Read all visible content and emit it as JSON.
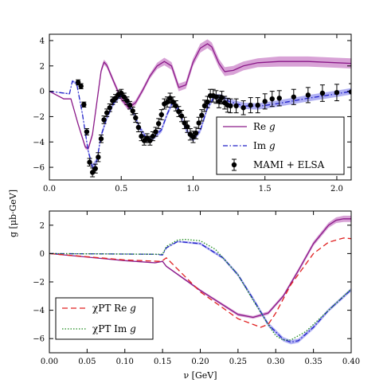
{
  "shared_ylabel": "g [μb·GeV]",
  "chart_data": [
    {
      "type": "line",
      "xlim": [
        0.0,
        2.1
      ],
      "ylim": [
        -7,
        4.5
      ],
      "xticks": [
        0.0,
        0.5,
        1.0,
        1.5,
        2.0
      ],
      "xtick_labels": [
        "0.0",
        "0.5",
        "1.0",
        "1.5",
        "2.0"
      ],
      "yticks": [
        4,
        2,
        0,
        -2,
        -4,
        -6
      ],
      "ytick_labels": [
        "4",
        "2",
        "0",
        "−2",
        "−4",
        "−6"
      ],
      "legend_position": "lower-right",
      "grid": false,
      "series": [
        {
          "name": "Re g",
          "label_main": "Re",
          "label_var": "g",
          "style": "solid",
          "color": "#8B1A89",
          "band_color": "#C77BC4",
          "x": [
            0.0,
            0.1,
            0.15,
            0.2,
            0.25,
            0.27,
            0.3,
            0.33,
            0.36,
            0.38,
            0.4,
            0.45,
            0.5,
            0.55,
            0.6,
            0.65,
            0.7,
            0.75,
            0.8,
            0.85,
            0.9,
            0.95,
            1.0,
            1.05,
            1.1,
            1.13,
            1.18,
            1.22,
            1.28,
            1.35,
            1.45,
            1.6,
            1.8,
            2.0,
            2.1
          ],
          "y": [
            0.0,
            -0.6,
            -0.6,
            -2.6,
            -4.4,
            -4.55,
            -3.4,
            -0.9,
            1.6,
            2.3,
            2.05,
            0.7,
            -0.6,
            -1.3,
            -0.9,
            0.1,
            1.2,
            2.0,
            2.35,
            2.0,
            0.3,
            0.5,
            2.3,
            3.4,
            3.75,
            3.5,
            2.2,
            1.55,
            1.65,
            2.0,
            2.25,
            2.35,
            2.35,
            2.25,
            2.2
          ],
          "band": [
            0.0,
            0.05,
            0.05,
            0.1,
            0.15,
            0.15,
            0.2,
            0.2,
            0.2,
            0.2,
            0.2,
            0.2,
            0.2,
            0.2,
            0.2,
            0.2,
            0.2,
            0.25,
            0.3,
            0.3,
            0.3,
            0.3,
            0.3,
            0.35,
            0.35,
            0.35,
            0.35,
            0.35,
            0.35,
            0.35,
            0.35,
            0.4,
            0.4,
            0.4,
            0.4
          ]
        },
        {
          "name": "Im g",
          "label_main": "Im",
          "label_var": "g",
          "style": "dashdot",
          "color": "#2020C8",
          "band_color": "#9090F0",
          "x": [
            0.0,
            0.14,
            0.16,
            0.19,
            0.23,
            0.27,
            0.3,
            0.33,
            0.36,
            0.4,
            0.45,
            0.5,
            0.53,
            0.58,
            0.63,
            0.68,
            0.73,
            0.78,
            0.82,
            0.86,
            0.9,
            0.95,
            1.0,
            1.05,
            1.1,
            1.15,
            1.2,
            1.25,
            1.35,
            1.45,
            1.6,
            1.8,
            2.0,
            2.1
          ],
          "y": [
            0.0,
            -0.2,
            0.8,
            0.6,
            -1.8,
            -4.7,
            -6.0,
            -5.5,
            -3.5,
            -2.1,
            -0.9,
            -0.3,
            -0.55,
            -1.6,
            -2.9,
            -3.8,
            -3.6,
            -3.05,
            -1.8,
            -0.8,
            -1.5,
            -3.0,
            -3.8,
            -3.1,
            -1.3,
            -0.4,
            -0.45,
            -0.8,
            -1.15,
            -1.2,
            -0.95,
            -0.55,
            -0.2,
            0.0
          ],
          "band": [
            0.0,
            0.05,
            0.1,
            0.1,
            0.15,
            0.2,
            0.25,
            0.25,
            0.2,
            0.2,
            0.15,
            0.15,
            0.15,
            0.15,
            0.2,
            0.2,
            0.2,
            0.2,
            0.2,
            0.2,
            0.2,
            0.2,
            0.2,
            0.2,
            0.2,
            0.2,
            0.2,
            0.2,
            0.25,
            0.25,
            0.25,
            0.25,
            0.25,
            0.25
          ]
        },
        {
          "name": "MAMI + ELSA",
          "label_main": "MAMI + ELSA",
          "label_var": "",
          "style": "errorbar",
          "color": "#000000",
          "x": [
            0.2,
            0.22,
            0.24,
            0.26,
            0.28,
            0.3,
            0.32,
            0.34,
            0.36,
            0.38,
            0.4,
            0.42,
            0.44,
            0.46,
            0.48,
            0.5,
            0.52,
            0.54,
            0.56,
            0.58,
            0.6,
            0.62,
            0.64,
            0.66,
            0.68,
            0.7,
            0.72,
            0.74,
            0.76,
            0.78,
            0.8,
            0.82,
            0.84,
            0.86,
            0.88,
            0.9,
            0.92,
            0.94,
            0.96,
            0.98,
            1.0,
            1.02,
            1.04,
            1.06,
            1.08,
            1.1,
            1.12,
            1.14,
            1.16,
            1.18,
            1.2,
            1.22,
            1.24,
            1.26,
            1.3,
            1.35,
            1.4,
            1.45,
            1.5,
            1.55,
            1.6,
            1.7,
            1.8,
            1.9,
            2.0,
            2.1
          ],
          "y": [
            0.7,
            0.4,
            -1.05,
            -3.2,
            -5.6,
            -6.4,
            -6.1,
            -5.2,
            -3.75,
            -2.25,
            -1.7,
            -1.3,
            -0.75,
            -0.55,
            -0.25,
            -0.15,
            -0.45,
            -0.75,
            -1.1,
            -1.55,
            -2.1,
            -2.85,
            -3.55,
            -3.9,
            -3.7,
            -3.9,
            -3.55,
            -3.2,
            -2.55,
            -1.85,
            -1.0,
            -0.85,
            -0.55,
            -0.85,
            -1.15,
            -1.6,
            -1.95,
            -2.5,
            -2.8,
            -3.4,
            -3.6,
            -3.3,
            -2.5,
            -1.9,
            -1.15,
            -0.85,
            -0.35,
            -0.35,
            -0.45,
            -0.8,
            -0.5,
            -0.9,
            -1.1,
            -1.15,
            -1.15,
            -1.3,
            -1.1,
            -1.1,
            -0.8,
            -0.6,
            -0.55,
            -0.45,
            -0.3,
            -0.15,
            -0.1,
            -0.05
          ],
          "err": [
            0.2,
            0.2,
            0.2,
            0.25,
            0.3,
            0.35,
            0.35,
            0.35,
            0.3,
            0.3,
            0.3,
            0.3,
            0.3,
            0.3,
            0.3,
            0.3,
            0.3,
            0.3,
            0.3,
            0.3,
            0.35,
            0.35,
            0.35,
            0.35,
            0.35,
            0.35,
            0.35,
            0.35,
            0.4,
            0.4,
            0.4,
            0.4,
            0.4,
            0.4,
            0.4,
            0.4,
            0.45,
            0.45,
            0.45,
            0.45,
            0.45,
            0.45,
            0.45,
            0.45,
            0.45,
            0.45,
            0.5,
            0.5,
            0.5,
            0.5,
            0.5,
            0.5,
            0.55,
            0.55,
            0.55,
            0.55,
            0.6,
            0.6,
            0.6,
            0.6,
            0.6,
            0.6,
            0.6,
            0.65,
            0.65,
            0.65
          ]
        }
      ]
    },
    {
      "type": "line",
      "xlabel": "ν [GeV]",
      "xlim": [
        0.0,
        0.4
      ],
      "ylim": [
        -7,
        3
      ],
      "xticks": [
        0.0,
        0.05,
        0.1,
        0.15,
        0.2,
        0.25,
        0.3,
        0.35,
        0.4
      ],
      "xtick_labels": [
        "0.00",
        "0.05",
        "0.10",
        "0.15",
        "0.20",
        "0.25",
        "0.30",
        "0.35",
        "0.40"
      ],
      "yticks": [
        2,
        0,
        -2,
        -4,
        -6
      ],
      "ytick_labels": [
        "2",
        "0",
        "−2",
        "−4",
        "−6"
      ],
      "legend_position": "lower-left",
      "grid": false,
      "series": [
        {
          "name": "Re g",
          "style": "solid",
          "color": "#8B1A89",
          "band_color": "#C77BC4",
          "x": [
            0.0,
            0.1,
            0.14,
            0.15,
            0.155,
            0.2,
            0.25,
            0.27,
            0.29,
            0.31,
            0.33,
            0.35,
            0.37,
            0.38,
            0.39,
            0.4
          ],
          "y": [
            0.0,
            -0.5,
            -0.65,
            -0.55,
            -0.9,
            -2.6,
            -4.3,
            -4.5,
            -4.2,
            -3.0,
            -1.2,
            0.7,
            2.0,
            2.35,
            2.45,
            2.45
          ],
          "band": [
            0.0,
            0.03,
            0.04,
            0.04,
            0.05,
            0.08,
            0.1,
            0.1,
            0.12,
            0.12,
            0.14,
            0.16,
            0.18,
            0.2,
            0.22,
            0.22
          ]
        },
        {
          "name": "Im g",
          "style": "dashdot",
          "color": "#2020C8",
          "band_color": "#9090F0",
          "x": [
            0.0,
            0.14,
            0.15,
            0.155,
            0.17,
            0.2,
            0.23,
            0.25,
            0.27,
            0.29,
            0.31,
            0.32,
            0.33,
            0.35,
            0.37,
            0.4
          ],
          "y": [
            0.0,
            -0.05,
            -0.1,
            0.4,
            0.85,
            0.7,
            -0.3,
            -1.5,
            -3.2,
            -5.0,
            -6.05,
            -6.25,
            -6.15,
            -5.2,
            -4.0,
            -2.55
          ],
          "band": [
            0.0,
            0.02,
            0.02,
            0.05,
            0.06,
            0.08,
            0.1,
            0.12,
            0.14,
            0.15,
            0.15,
            0.15,
            0.15,
            0.14,
            0.12,
            0.12
          ]
        },
        {
          "name": "χPT Re g",
          "label_main": "χPT Re",
          "label_var": "g",
          "style": "dashed",
          "color": "#E02020",
          "x": [
            0.0,
            0.1,
            0.145,
            0.15,
            0.155,
            0.2,
            0.25,
            0.27,
            0.28,
            0.29,
            0.3,
            0.32,
            0.35,
            0.37,
            0.39,
            0.4
          ],
          "y": [
            0.0,
            -0.45,
            -0.55,
            -0.5,
            -0.3,
            -2.7,
            -4.6,
            -5.0,
            -5.2,
            -5.0,
            -4.2,
            -2.2,
            0.0,
            0.8,
            1.1,
            1.05
          ]
        },
        {
          "name": "χPT Im g",
          "label_main": "χPT Im",
          "label_var": "g",
          "style": "dotted",
          "color": "#1A8A1A",
          "x": [
            0.0,
            0.15,
            0.155,
            0.17,
            0.18,
            0.2,
            0.22,
            0.25,
            0.27,
            0.29,
            0.3,
            0.31,
            0.32,
            0.34,
            0.37,
            0.4
          ],
          "y": [
            0.0,
            -0.05,
            0.5,
            0.95,
            1.0,
            0.9,
            0.3,
            -1.5,
            -3.3,
            -5.0,
            -5.8,
            -6.1,
            -6.1,
            -5.5,
            -4.0,
            -2.5
          ]
        }
      ]
    }
  ]
}
